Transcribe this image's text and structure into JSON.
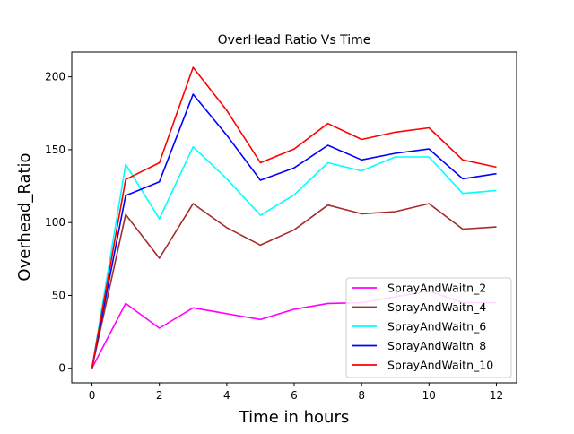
{
  "chart_data": {
    "type": "line",
    "title": "OverHead Ratio Vs Time",
    "xlabel": "Time in hours",
    "ylabel": "Overhead_Ratio",
    "xlim": [
      -0.6,
      12.6
    ],
    "ylim": [
      -10,
      217
    ],
    "xticks": [
      0,
      2,
      4,
      6,
      8,
      10,
      12
    ],
    "yticks": [
      0,
      50,
      100,
      150,
      200
    ],
    "grid": false,
    "legend_position": "lower-right",
    "x": [
      0,
      1,
      2,
      3,
      4,
      5,
      6,
      7,
      8,
      9,
      10,
      11,
      12
    ],
    "series": [
      {
        "name": "SprayAndWaitn_2",
        "color": "#ff00ff",
        "values": [
          0,
          44.5,
          27.5,
          41.5,
          37.5,
          33.5,
          40.5,
          44.5,
          45,
          49,
          53,
          45,
          45
        ]
      },
      {
        "name": "SprayAndWaitn_4",
        "color": "#a52a2a",
        "values": [
          0,
          105.5,
          75.5,
          113,
          96.5,
          84.5,
          95,
          112,
          106,
          107.5,
          113,
          95.5,
          97
        ]
      },
      {
        "name": "SprayAndWaitn_6",
        "color": "#00ffff",
        "values": [
          0,
          140,
          102.5,
          152,
          130,
          105,
          119,
          141,
          135.5,
          145,
          145,
          120,
          122
        ]
      },
      {
        "name": "SprayAndWaitn_8",
        "color": "#0000ff",
        "values": [
          0,
          118.5,
          128,
          188,
          160,
          129,
          137.5,
          153,
          143,
          147.5,
          150.5,
          130,
          133.5
        ]
      },
      {
        "name": "SprayAndWaitn_10",
        "color": "#ff0000",
        "values": [
          0,
          129.5,
          141,
          206.5,
          177,
          141,
          150.5,
          168,
          157,
          162,
          165,
          143,
          138
        ]
      }
    ]
  }
}
